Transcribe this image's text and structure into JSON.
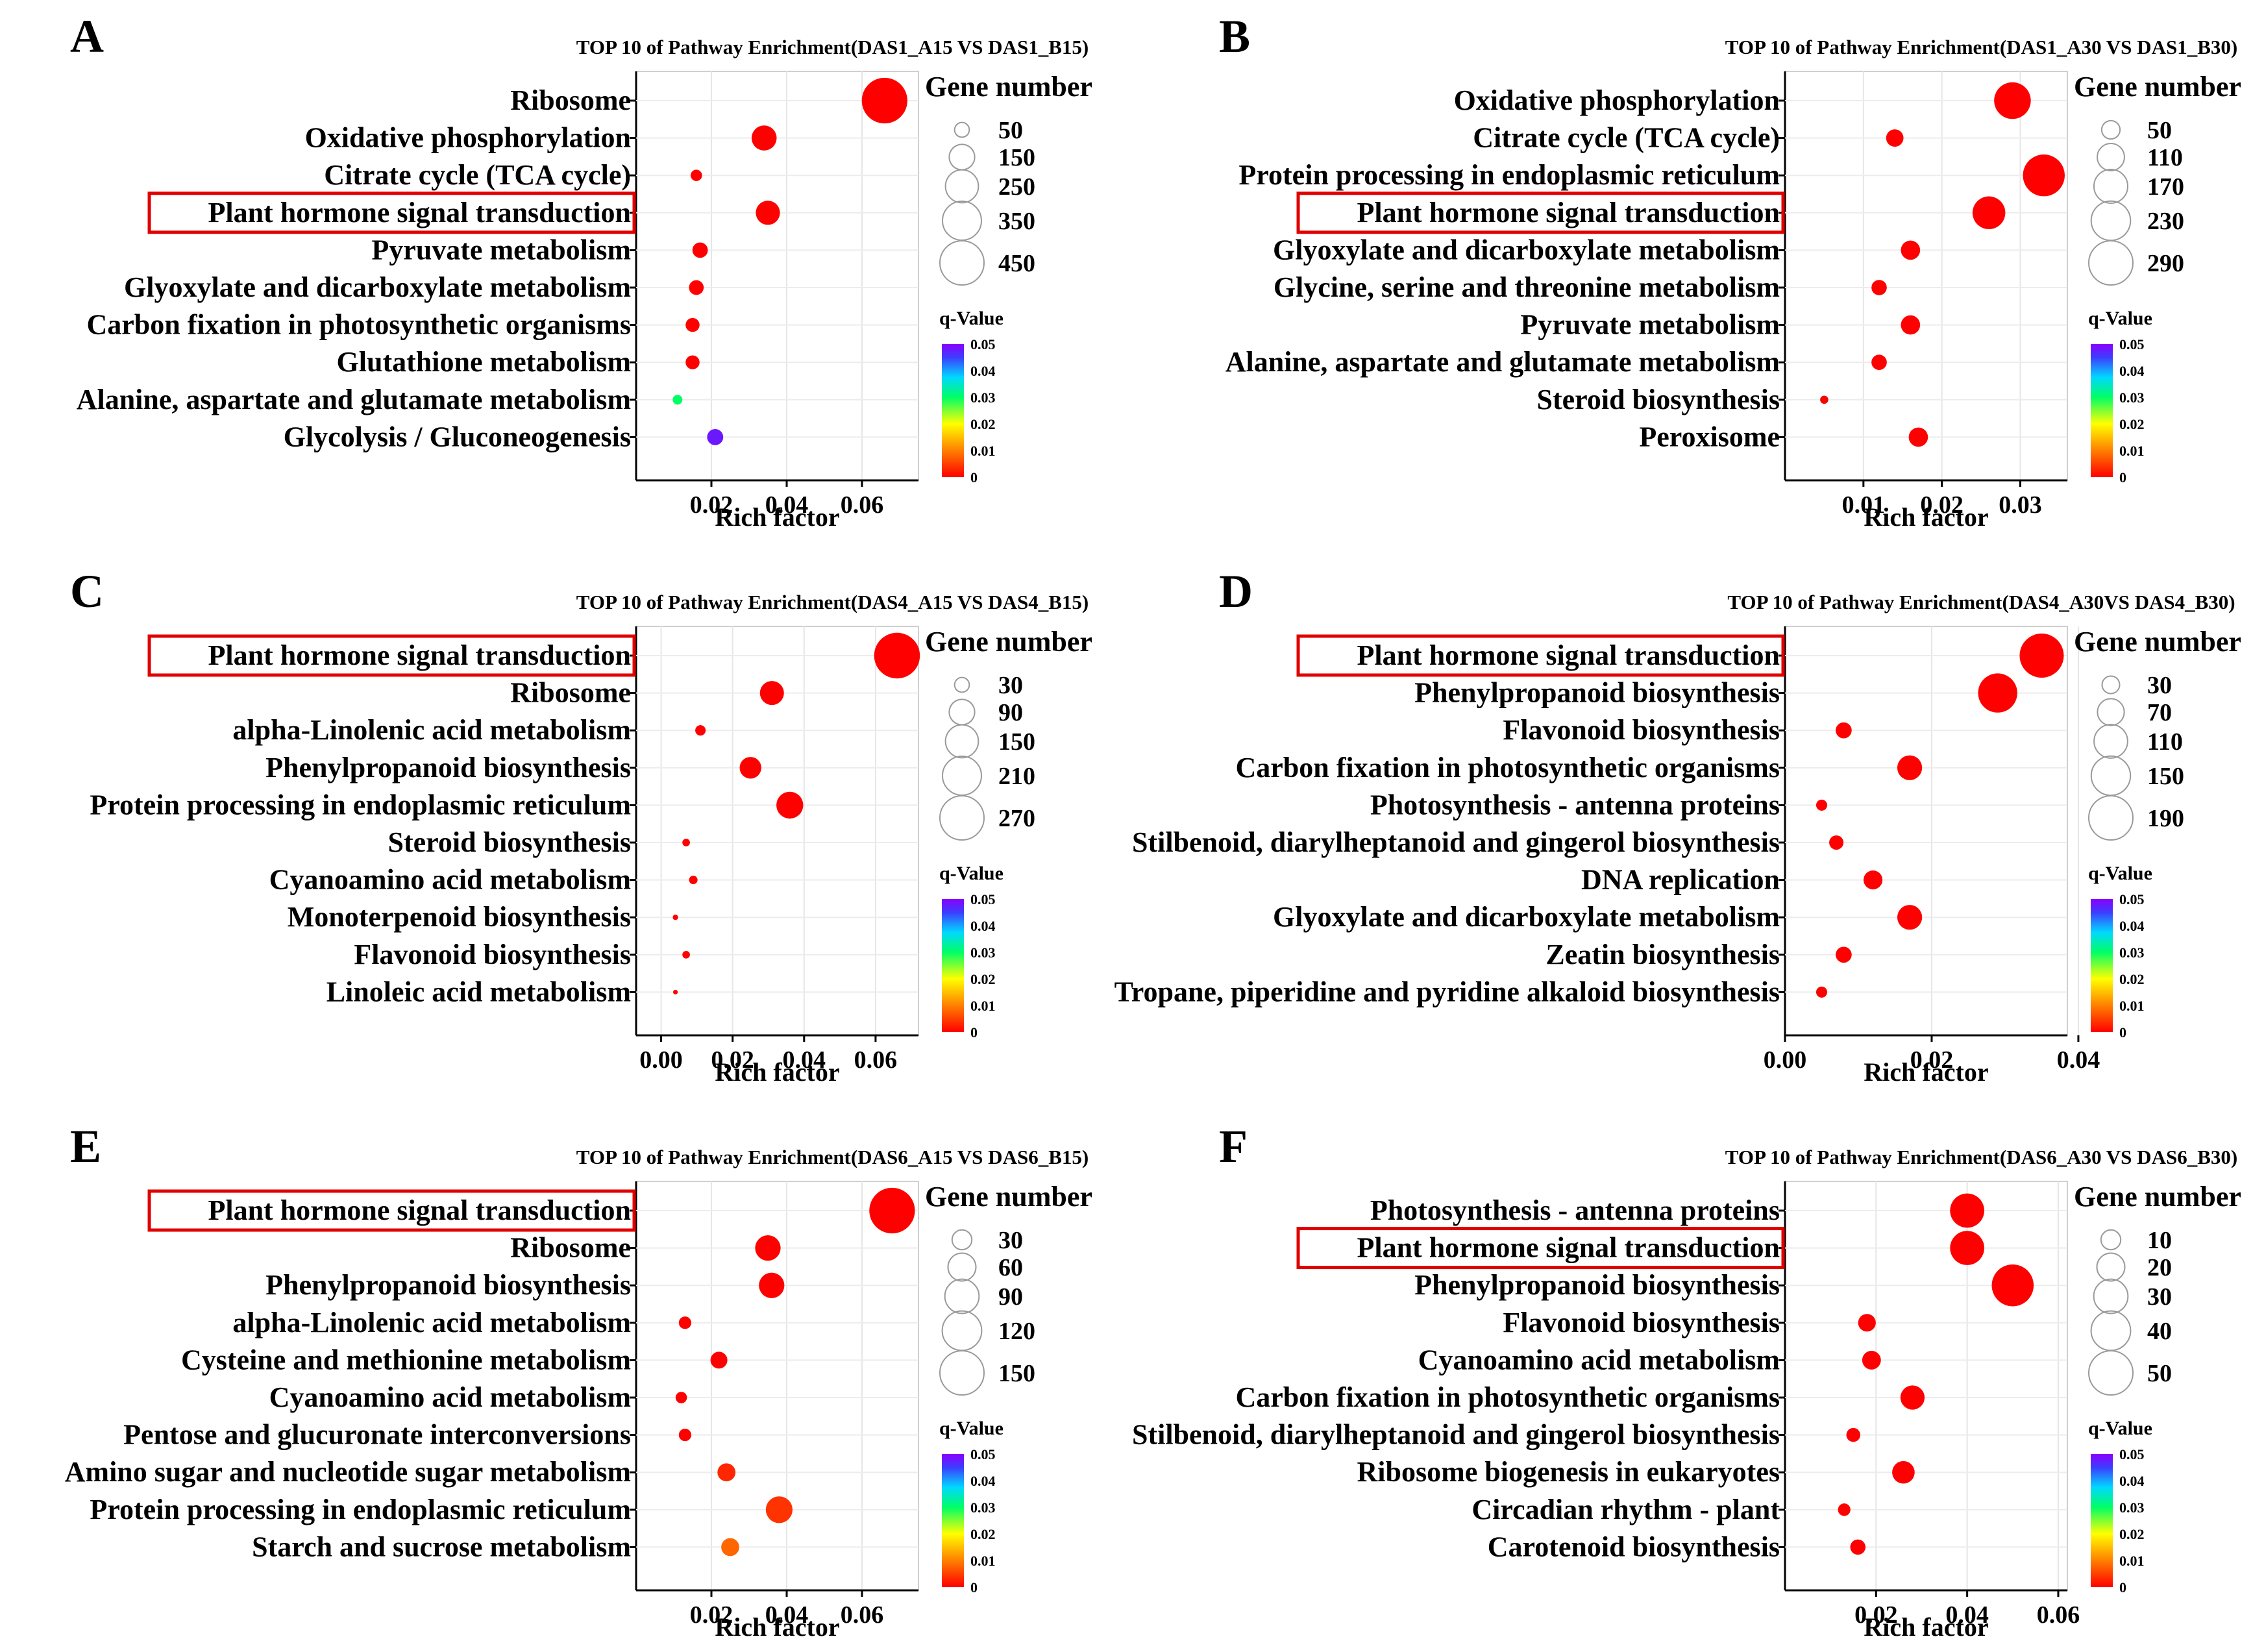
{
  "figure": {
    "common_xlabel": "Rich factor",
    "size_legend_title": "Gene number",
    "color_legend_title": "q-Value"
  },
  "chart_data": [
    {
      "panel": "A",
      "type": "scatter",
      "title": "TOP 10 of Pathway Enrichment(DAS1_A15 VS DAS1_B15)",
      "xlabel": "Rich factor",
      "xlim": [
        0.0,
        0.075
      ],
      "xticks": [
        0.02,
        0.04,
        0.06
      ],
      "xtick_labels": [
        "0.02",
        "0.04",
        "0.06"
      ],
      "highlight": "Plant hormone signal transduction",
      "pathways": [
        "Ribosome",
        "Oxidative phosphorylation",
        "Citrate cycle (TCA cycle)",
        "Plant hormone signal transduction",
        "Pyruvate metabolism",
        "Glyoxylate and dicarboxylate metabolism",
        "Carbon fixation in photosynthetic organisms",
        "Glutathione metabolism",
        "Alanine, aspartate and glutamate metabolism",
        "Glycolysis / Gluconeogenesis"
      ],
      "rich_factor": [
        0.066,
        0.034,
        0.016,
        0.035,
        0.017,
        0.016,
        0.015,
        0.015,
        0.011,
        0.021
      ],
      "gene_number": [
        480,
        145,
        30,
        135,
        55,
        50,
        45,
        45,
        22,
        60
      ],
      "q_value": [
        0.0,
        0.0,
        0.0,
        0.0,
        0.0,
        0.0,
        0.0,
        0.0,
        0.03,
        0.048
      ],
      "size_legend": [
        50,
        150,
        250,
        350,
        450
      ],
      "size_legend_labels": [
        "50",
        "150",
        "250",
        "350",
        "450"
      ],
      "color_ticks": [
        "0.05",
        "0.04",
        "0.03",
        "0.02",
        "0.01",
        "0"
      ]
    },
    {
      "panel": "B",
      "type": "scatter",
      "title": "TOP 10 of Pathway Enrichment(DAS1_A30 VS DAS1_B30)",
      "xlabel": "Rich factor",
      "xlim": [
        0.0,
        0.036
      ],
      "xticks": [
        0.01,
        0.02,
        0.03
      ],
      "xtick_labels": [
        "0.01",
        "0.02",
        "0.03"
      ],
      "highlight": "Plant hormone signal transduction",
      "pathways": [
        "Oxidative phosphorylation",
        "Citrate cycle (TCA cycle)",
        "Protein processing in endoplasmic reticulum",
        "Plant hormone signal transduction",
        "Glyoxylate and dicarboxylate metabolism",
        "Glycine, serine and threonine metabolism",
        "Pyruvate metabolism",
        "Alanine, aspartate and glutamate metabolism",
        "Steroid biosynthesis",
        "Peroxisome"
      ],
      "rich_factor": [
        0.029,
        0.014,
        0.033,
        0.026,
        0.016,
        0.012,
        0.016,
        0.012,
        0.005,
        0.017
      ],
      "gene_number": [
        200,
        45,
        260,
        160,
        55,
        35,
        55,
        35,
        10,
        55
      ],
      "q_value": [
        0.0,
        0.0,
        0.0,
        0.0,
        0.0,
        0.0,
        0.0,
        0.0,
        0.0,
        0.0
      ],
      "size_legend": [
        50,
        110,
        170,
        230,
        290
      ],
      "size_legend_labels": [
        "50",
        "110",
        "170",
        "230",
        "290"
      ],
      "color_ticks": [
        "0.05",
        "0.04",
        "0.03",
        "0.02",
        "0.01",
        "0"
      ]
    },
    {
      "panel": "C",
      "type": "scatter",
      "title": "TOP 10 of Pathway Enrichment(DAS4_A15 VS DAS4_B15)",
      "xlabel": "Rich factor",
      "xlim": [
        -0.007,
        0.072
      ],
      "xticks": [
        0.0,
        0.02,
        0.04,
        0.06
      ],
      "xtick_labels": [
        "0.00",
        "0.02",
        "0.04",
        "0.06"
      ],
      "highlight": "Plant hormone signal transduction",
      "pathways": [
        "Plant hormone signal transduction",
        "Ribosome",
        "alpha-Linolenic acid metabolism",
        "Phenylpropanoid biosynthesis",
        "Protein processing in endoplasmic reticulum",
        "Steroid biosynthesis",
        "Cyanoamino acid metabolism",
        "Monoterpenoid biosynthesis",
        "Flavonoid biosynthesis",
        "Linoleic acid metabolism"
      ],
      "rich_factor": [
        0.066,
        0.031,
        0.011,
        0.025,
        0.036,
        0.007,
        0.009,
        0.004,
        0.007,
        0.004
      ],
      "gene_number": [
        290,
        80,
        15,
        65,
        100,
        8,
        10,
        4,
        8,
        3
      ],
      "q_value": [
        0.0,
        0.0,
        0.0,
        0.0,
        0.0,
        0.0,
        0.0,
        0.0,
        0.0,
        0.0
      ],
      "size_legend": [
        30,
        90,
        150,
        210,
        270
      ],
      "size_legend_labels": [
        "30",
        "90",
        "150",
        "210",
        "270"
      ],
      "color_ticks": [
        "0.05",
        "0.04",
        "0.03",
        "0.02",
        "0.01",
        "0"
      ]
    },
    {
      "panel": "D",
      "type": "scatter",
      "title": "TOP 10 of Pathway Enrichment(DAS4_A30VS DAS4_B30)",
      "xlabel": "Rich factor",
      "xlim": [
        0.0,
        0.0385
      ],
      "xticks": [
        0.0,
        0.02,
        0.04
      ],
      "xtick_labels": [
        "0.00",
        "0.02",
        "0.04"
      ],
      "highlight": "Plant hormone signal transduction",
      "pathways": [
        "Plant hormone signal transduction",
        "Phenylpropanoid biosynthesis",
        "Flavonoid biosynthesis",
        "Carbon fixation in photosynthetic organisms",
        "Photosynthesis - antenna proteins",
        "Stilbenoid, diarylheptanoid and gingerol biosynthesis",
        "DNA replication",
        "Glyoxylate and dicarboxylate metabolism",
        "Zeatin biosynthesis",
        "Tropane, piperidine and pyridine alkaloid biosynthesis"
      ],
      "rich_factor": [
        0.035,
        0.029,
        0.008,
        0.017,
        0.005,
        0.007,
        0.012,
        0.017,
        0.008,
        0.005
      ],
      "gene_number": [
        190,
        150,
        25,
        60,
        12,
        20,
        35,
        60,
        25,
        12
      ],
      "q_value": [
        0.0,
        0.0,
        0.0,
        0.0,
        0.0,
        0.0,
        0.0,
        0.0,
        0.0,
        0.0
      ],
      "size_legend": [
        30,
        70,
        110,
        150,
        190
      ],
      "size_legend_labels": [
        "30",
        "70",
        "110",
        "150",
        "190"
      ],
      "color_ticks": [
        "0.05",
        "0.04",
        "0.03",
        "0.02",
        "0.01",
        "0"
      ]
    },
    {
      "panel": "E",
      "type": "scatter",
      "title": "TOP 10 of Pathway Enrichment(DAS6_A15 VS DAS6_B15)",
      "xlabel": "Rich factor",
      "xlim": [
        0.0,
        0.075
      ],
      "xticks": [
        0.02,
        0.04,
        0.06
      ],
      "xtick_labels": [
        "0.02",
        "0.04",
        "0.06"
      ],
      "highlight": "Plant hormone signal transduction",
      "pathways": [
        "Plant hormone signal transduction",
        "Ribosome",
        "Phenylpropanoid biosynthesis",
        "alpha-Linolenic acid metabolism",
        "Cysteine and methionine metabolism",
        "Cyanoamino acid metabolism",
        "Pentose and glucuronate interconversions",
        "Amino sugar and nucleotide sugar metabolism",
        "Protein processing in endoplasmic reticulum",
        "Starch and sucrose metabolism"
      ],
      "rich_factor": [
        0.068,
        0.035,
        0.036,
        0.013,
        0.022,
        0.012,
        0.013,
        0.024,
        0.038,
        0.025
      ],
      "gene_number": [
        160,
        50,
        50,
        12,
        22,
        10,
        12,
        25,
        55,
        25
      ],
      "q_value": [
        0.0,
        0.0,
        0.0,
        0.0,
        0.0,
        0.0,
        0.0,
        0.003,
        0.004,
        0.008
      ],
      "size_legend": [
        30,
        60,
        90,
        120,
        150
      ],
      "size_legend_labels": [
        "30",
        "60",
        "90",
        "120",
        "150"
      ],
      "color_ticks": [
        "0.05",
        "0.04",
        "0.03",
        "0.02",
        "0.01",
        "0"
      ]
    },
    {
      "panel": "F",
      "type": "scatter",
      "title": "TOP 10 of Pathway Enrichment(DAS6_A30 VS DAS6_B30)",
      "xlabel": "Rich factor",
      "xlim": [
        0.0,
        0.062
      ],
      "xticks": [
        0.02,
        0.04,
        0.06
      ],
      "xtick_labels": [
        "0.02",
        "0.04",
        "0.06"
      ],
      "highlight": "Plant hormone signal transduction",
      "pathways": [
        "Photosynthesis - antenna proteins",
        "Plant hormone signal transduction",
        "Phenylpropanoid biosynthesis",
        "Flavonoid biosynthesis",
        "Cyanoamino acid metabolism",
        "Carbon fixation in photosynthetic organisms",
        "Stilbenoid, diarylheptanoid and gingerol biosynthesis",
        "Ribosome biogenesis in eukaryotes",
        "Circadian rhythm - plant",
        "Carotenoid biosynthesis"
      ],
      "rich_factor": [
        0.04,
        0.04,
        0.05,
        0.018,
        0.019,
        0.028,
        0.015,
        0.026,
        0.013,
        0.016
      ],
      "gene_number": [
        30,
        30,
        45,
        8,
        9,
        15,
        5,
        13,
        4,
        6
      ],
      "q_value": [
        0.0,
        0.0,
        0.0,
        0.0,
        0.0,
        0.0,
        0.0,
        0.0,
        0.0,
        0.0
      ],
      "size_legend": [
        10,
        20,
        30,
        40,
        50
      ],
      "size_legend_labels": [
        "10",
        "20",
        "30",
        "40",
        "50"
      ],
      "color_ticks": [
        "0.05",
        "0.04",
        "0.03",
        "0.02",
        "0.01",
        "0"
      ]
    }
  ]
}
